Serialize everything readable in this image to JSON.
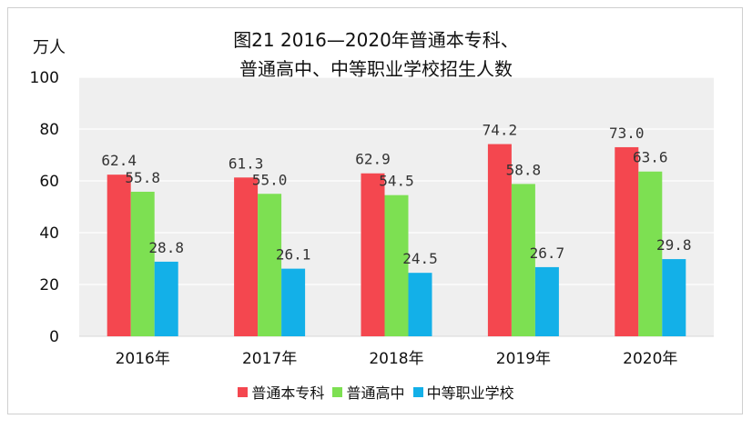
{
  "chart_data": {
    "type": "bar",
    "title_line1": "图21   2016—2020年普通本专科、",
    "title_line2": "普通高中、中等职业学校招生人数",
    "ylabel": "万人",
    "ylim": [
      0,
      100
    ],
    "yticks": [
      0,
      20,
      40,
      60,
      80,
      100
    ],
    "categories": [
      "2016年",
      "2017年",
      "2018年",
      "2019年",
      "2020年"
    ],
    "series": [
      {
        "name": "普通本专科",
        "color": "#F4474F",
        "values": [
          62.4,
          61.3,
          62.9,
          74.2,
          73.0
        ],
        "labels": [
          "62.4",
          "61.3",
          "62.9",
          "74.2",
          "73.0"
        ]
      },
      {
        "name": "普通高中",
        "color": "#7DE052",
        "values": [
          55.8,
          55.0,
          54.5,
          58.8,
          63.6
        ],
        "labels": [
          "55.8",
          "55.0",
          "54.5",
          "58.8",
          "63.6"
        ]
      },
      {
        "name": "中等职业学校",
        "color": "#13B0E8",
        "values": [
          28.8,
          26.1,
          24.5,
          26.7,
          29.8
        ],
        "labels": [
          "28.8",
          "26.1",
          "24.5",
          "26.7",
          "29.8"
        ]
      }
    ],
    "plot_background": "#EFEFEF",
    "grid": true,
    "legend_position": "bottom"
  }
}
